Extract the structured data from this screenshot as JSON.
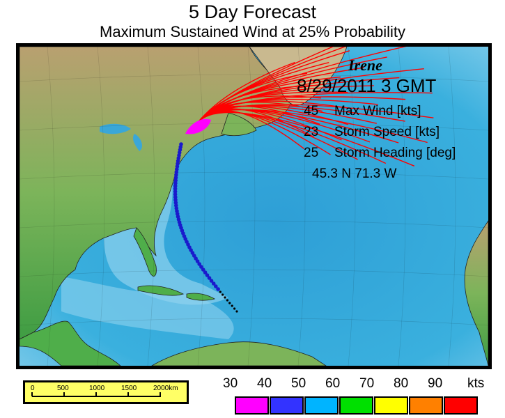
{
  "title": "5 Day Forecast",
  "subtitle": "Maximum Sustained Wind at 25% Probability",
  "storm": {
    "name": "Irene",
    "datetime": "8/29/2011   3  GMT",
    "max_wind": "45",
    "max_wind_label": "Max Wind [kts]",
    "storm_speed": "23",
    "storm_speed_label": "Storm Speed [kts]",
    "storm_heading": "25",
    "storm_heading_label": "Storm Heading [deg]",
    "position": "45.3 N  71.3 W"
  },
  "scale_bar": {
    "ticks": [
      "0",
      "500",
      "1000",
      "1500",
      "2000"
    ],
    "unit": "km"
  },
  "legend": {
    "labels": [
      "30",
      "40",
      "50",
      "60",
      "70",
      "80",
      "90",
      "kts"
    ],
    "colors": [
      "#ff00ff",
      "#3333ff",
      "#00b4ff",
      "#00e000",
      "#ffff00",
      "#ff8000",
      "#ff0000"
    ]
  },
  "colors": {
    "ocean_deep": "#2e9fd6",
    "ocean_shallow": "#8fd2ee",
    "land_low": "#4fae4a",
    "land_high": "#b49a6a",
    "track": "#1a1acc"
  }
}
